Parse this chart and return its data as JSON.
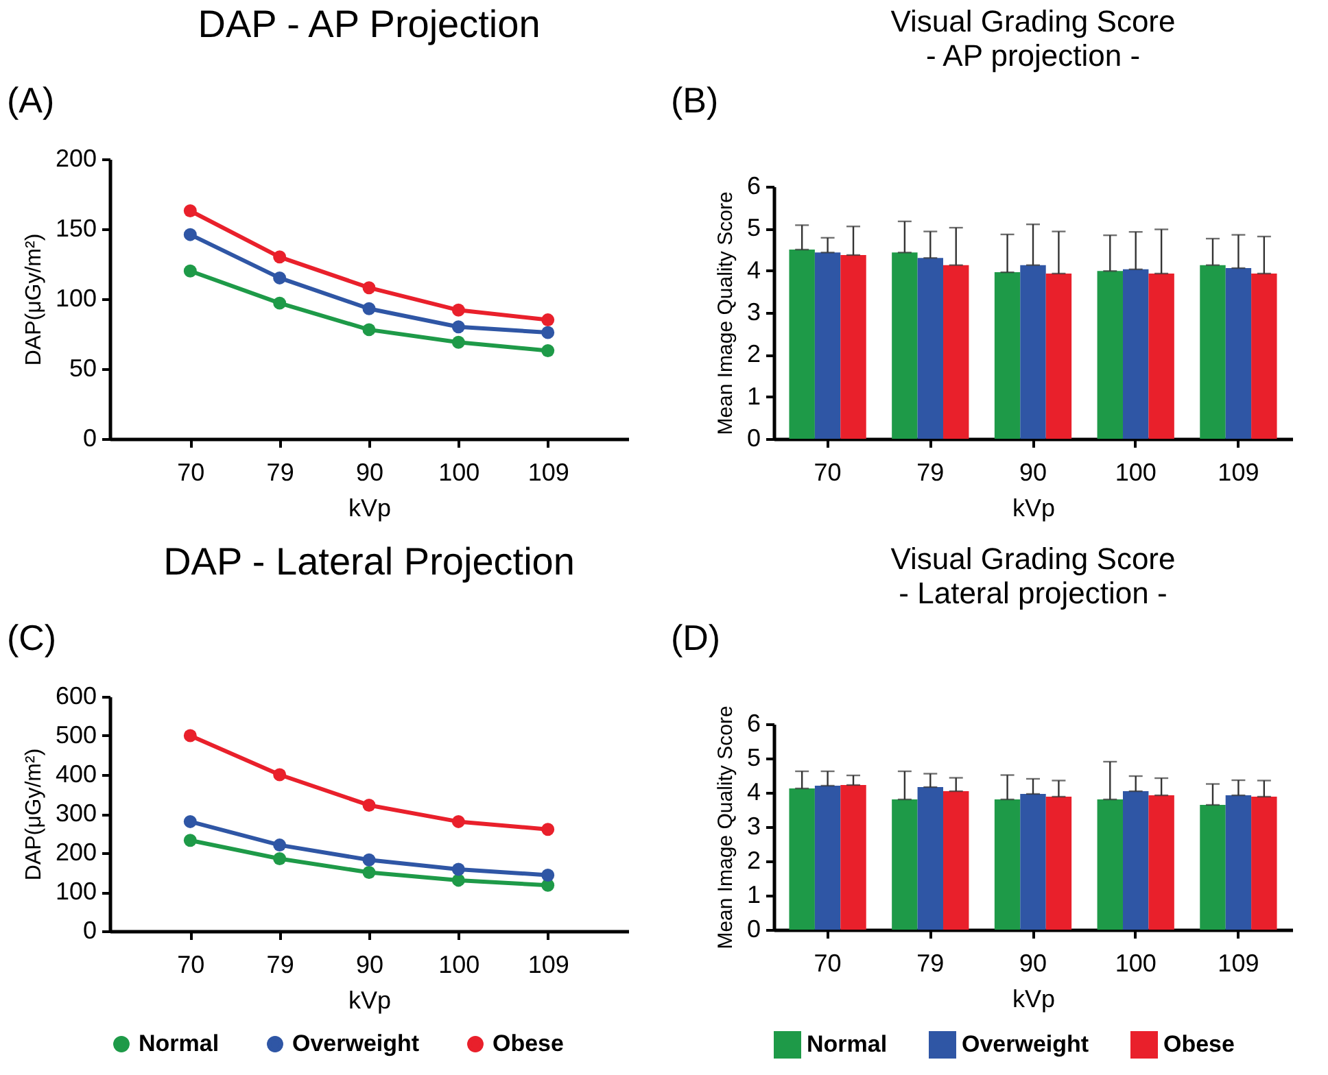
{
  "chart_data": [
    {
      "type": "line",
      "title": "DAP - AP Projection",
      "annotations": [
        "(A)"
      ],
      "xlabel": "kVp",
      "ylabel": "DAP(μGy/m²)",
      "categories": [
        "70",
        "79",
        "90",
        "100",
        "109"
      ],
      "ylim": [
        0,
        200
      ],
      "yticks": [
        0,
        50,
        100,
        150,
        200
      ],
      "marker": "circle",
      "legend": false,
      "series": [
        {
          "color": "#1e9a48",
          "values": [
            120,
            97,
            78,
            69,
            63
          ]
        },
        {
          "color": "#2f56a5",
          "values": [
            146,
            115,
            93,
            80,
            76
          ]
        },
        {
          "color": "#e9202b",
          "values": [
            163,
            130,
            108,
            92,
            85
          ]
        }
      ]
    },
    {
      "type": "bar",
      "title": "Visual Grading Score",
      "subtitle": "- AP projection -",
      "annotations": [
        "(B)"
      ],
      "xlabel": "kVp",
      "ylabel": "Mean Image  Quality Score",
      "categories": [
        "70",
        "79",
        "90",
        "100",
        "109"
      ],
      "ylim": [
        0,
        6
      ],
      "yticks": [
        0,
        1,
        2,
        3,
        4,
        5,
        6
      ],
      "legend": false,
      "series": [
        {
          "color": "#1e9a48",
          "values": [
            4.5,
            4.43,
            3.96,
            3.99,
            4.13
          ],
          "errors": [
            [
              4.5,
              5.08
            ],
            [
              4.43,
              5.17
            ],
            [
              3.96,
              4.86
            ],
            [
              3.99,
              4.84
            ],
            [
              4.13,
              4.76
            ]
          ]
        },
        {
          "color": "#2f56a5",
          "values": [
            4.43,
            4.3,
            4.13,
            4.03,
            4.06
          ],
          "errors": [
            [
              4.43,
              4.78
            ],
            [
              4.3,
              4.93
            ],
            [
              4.13,
              5.1
            ],
            [
              4.03,
              4.92
            ],
            [
              4.06,
              4.85
            ]
          ]
        },
        {
          "color": "#e9202b",
          "values": [
            4.37,
            4.13,
            3.93,
            3.93,
            3.93
          ],
          "errors": [
            [
              4.37,
              5.05
            ],
            [
              4.13,
              5.02
            ],
            [
              3.93,
              4.93
            ],
            [
              3.93,
              4.98
            ],
            [
              3.93,
              4.81
            ]
          ]
        }
      ]
    },
    {
      "type": "line",
      "title": "DAP - Lateral Projection",
      "annotations": [
        "(C)"
      ],
      "xlabel": "kVp",
      "ylabel": "DAP(μGy/m²)",
      "categories": [
        "70",
        "79",
        "90",
        "100",
        "109"
      ],
      "ylim": [
        0,
        600
      ],
      "yticks": [
        0,
        100,
        200,
        300,
        400,
        500,
        600
      ],
      "marker": "circle",
      "legend": "bottom",
      "series": [
        {
          "name": "Normal",
          "color": "#1e9a48",
          "values": [
            232,
            185,
            150,
            130,
            117
          ]
        },
        {
          "name": "Overweight",
          "color": "#2f56a5",
          "values": [
            280,
            220,
            182,
            158,
            143
          ]
        },
        {
          "name": "Obese",
          "color": "#e9202b",
          "values": [
            500,
            400,
            322,
            280,
            260
          ]
        }
      ]
    },
    {
      "type": "bar",
      "title": "Visual Grading Score",
      "subtitle": "- Lateral projection -",
      "annotations": [
        "(D)"
      ],
      "xlabel": "kVp",
      "ylabel": "Mean Image  Quality Score",
      "categories": [
        "70",
        "79",
        "90",
        "100",
        "109"
      ],
      "ylim": [
        0,
        6
      ],
      "yticks": [
        0,
        1,
        2,
        3,
        4,
        5,
        6
      ],
      "legend": "bottom",
      "series": [
        {
          "name": "Normal",
          "color": "#1e9a48",
          "values": [
            4.12,
            3.8,
            3.8,
            3.8,
            3.64
          ],
          "errors": [
            [
              4.12,
              4.62
            ],
            [
              3.8,
              4.62
            ],
            [
              3.8,
              4.51
            ],
            [
              3.8,
              4.9
            ],
            [
              3.64,
              4.25
            ]
          ]
        },
        {
          "name": "Overweight",
          "color": "#2f56a5",
          "values": [
            4.2,
            4.16,
            3.96,
            4.04,
            3.92
          ],
          "errors": [
            [
              4.2,
              4.62
            ],
            [
              4.16,
              4.55
            ],
            [
              3.96,
              4.4
            ],
            [
              4.04,
              4.48
            ],
            [
              3.92,
              4.36
            ]
          ]
        },
        {
          "name": "Obese",
          "color": "#e9202b",
          "values": [
            4.22,
            4.04,
            3.88,
            3.92,
            3.88
          ],
          "errors": [
            [
              4.22,
              4.5
            ],
            [
              4.04,
              4.43
            ],
            [
              3.88,
              4.35
            ],
            [
              3.92,
              4.42
            ],
            [
              3.88,
              4.35
            ]
          ]
        }
      ]
    }
  ]
}
